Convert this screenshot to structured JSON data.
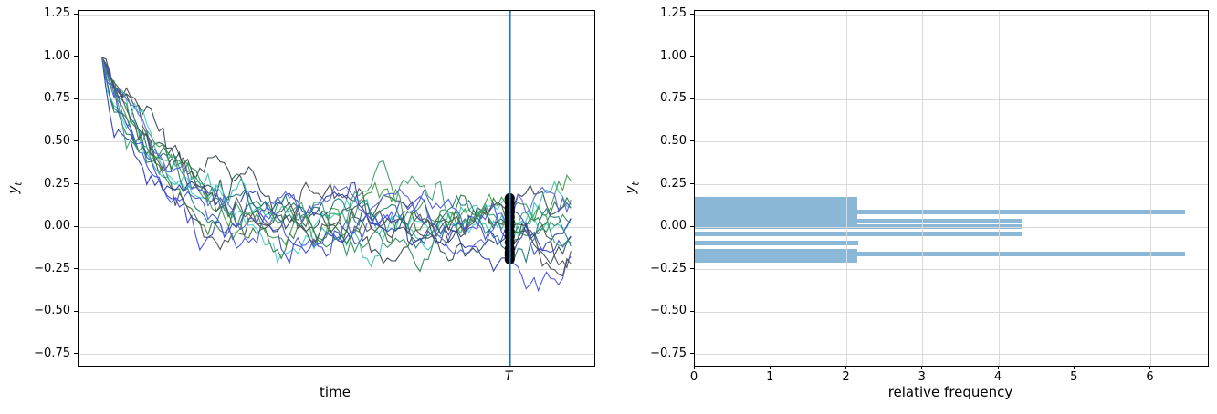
{
  "figure": {
    "background": "#ffffff"
  },
  "chart_data": [
    {
      "type": "line",
      "panel": "left",
      "title": "",
      "xlabel": "time",
      "ylabel": {
        "base": "y",
        "sub": "t"
      },
      "xlim": [
        -5.75,
        120.75
      ],
      "ylim": [
        -0.817,
        1.274
      ],
      "grid": true,
      "x_ticks": [
        {
          "value": 100,
          "label": "T"
        }
      ],
      "y_ticks": {
        "values": [
          1.25,
          1.0,
          0.75,
          0.5,
          0.25,
          0.0,
          -0.25,
          -0.5,
          -0.75
        ],
        "labels": [
          "1.25",
          "1.00",
          "0.75",
          "0.50",
          "0.25",
          "0.00",
          "−0.25",
          "−0.50",
          "−0.75"
        ]
      },
      "vline": {
        "x": 100,
        "color": "#1f77b4",
        "width": 2.5
      },
      "series_model": {
        "description": "simulated AR(1) decay paths, y(0)=1, y(t)=rho*y(t-1)+noise",
        "n_paths": 15,
        "t_max": 115,
        "y_start": 1.0,
        "ar_coeff": 0.93,
        "noise_std": 0.045,
        "seed_base": 20123,
        "seed_step": 7919
      },
      "line_colors": [
        "#37474f",
        "#4a4a4a",
        "#2f4f4f",
        "#35c4b5",
        "#45d1c5",
        "#2e8b57",
        "#3f9b4a",
        "#2c7a3a",
        "#3a46d4",
        "#4653e0",
        "#2c3ab0",
        "#1f7a7a",
        "#505050",
        "#3aa06a",
        "#5a62d8"
      ],
      "terminal_dots": {
        "x": 100,
        "color": "#000000",
        "radius": 5.5,
        "values": [
          0.17,
          0.145,
          0.115,
          0.095,
          0.085,
          0.06,
          0.03,
          0.005,
          -0.025,
          -0.055,
          -0.09,
          -0.125,
          -0.15,
          -0.165,
          -0.19
        ]
      }
    },
    {
      "type": "bar",
      "panel": "right",
      "orientation": "horizontal",
      "title": "",
      "xlabel": "relative frequency",
      "ylabel": {
        "base": "y",
        "sub": "t"
      },
      "xlim": [
        0,
        6.75
      ],
      "ylim": [
        -0.817,
        1.274
      ],
      "grid": true,
      "bar_color": "#8cb8d8",
      "x_ticks": {
        "values": [
          0,
          1,
          2,
          3,
          4,
          5,
          6
        ],
        "labels": [
          "0",
          "1",
          "2",
          "3",
          "4",
          "5",
          "6"
        ]
      },
      "y_ticks": {
        "values": [
          1.25,
          1.0,
          0.75,
          0.5,
          0.25,
          0.0,
          -0.25,
          -0.5,
          -0.75
        ],
        "labels": [
          "1.25",
          "1.00",
          "0.75",
          "0.50",
          "0.25",
          "0.00",
          "−0.25",
          "−0.50",
          "−0.75"
        ]
      },
      "bars": [
        {
          "y_top": 0.177,
          "y_bottom": -0.006,
          "freq": 2.14
        },
        {
          "y_top": 0.102,
          "y_bottom": 0.075,
          "freq": 6.45
        },
        {
          "y_top": 0.048,
          "y_bottom": 0.023,
          "freq": 4.3
        },
        {
          "y_top": 0.016,
          "y_bottom": -0.011,
          "freq": 4.3
        },
        {
          "y_top": -0.029,
          "y_bottom": -0.055,
          "freq": 4.3
        },
        {
          "y_top": -0.082,
          "y_bottom": -0.109,
          "freq": 2.15
        },
        {
          "y_top": -0.129,
          "y_bottom": -0.211,
          "freq": 2.14
        },
        {
          "y_top": -0.147,
          "y_bottom": -0.174,
          "freq": 6.45
        }
      ]
    }
  ]
}
